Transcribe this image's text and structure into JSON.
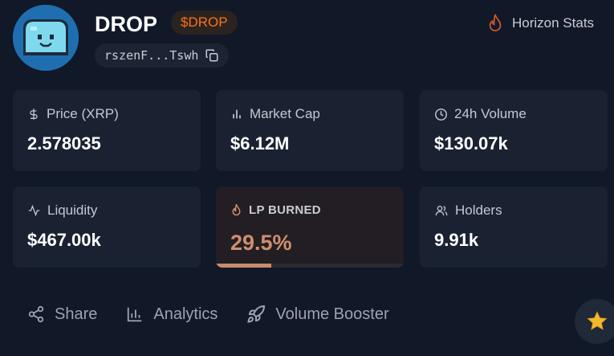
{
  "token": {
    "name": "DROP",
    "ticker": "$DROP",
    "address_short": "rszenF...Tswh"
  },
  "header_link": {
    "label": "Horizon Stats"
  },
  "stats": {
    "price": {
      "label": "Price (XRP)",
      "value": "2.578035"
    },
    "market_cap": {
      "label": "Market Cap",
      "value": "$6.12M"
    },
    "volume_24h": {
      "label": "24h Volume",
      "value": "$130.07k"
    },
    "liquidity": {
      "label": "Liquidity",
      "value": "$467.00k"
    },
    "lp_burned": {
      "label": "LP BURNED",
      "value": "29.5%",
      "fraction": 0.295
    },
    "holders": {
      "label": "Holders",
      "value": "9.91k"
    }
  },
  "actions": {
    "share": "Share",
    "analytics": "Analytics",
    "volume_booster": "Volume Booster"
  },
  "icons": {
    "avatar": "blob-mascot-icon",
    "copy": "copy-icon",
    "flame": "flame-icon",
    "dollar": "dollar-icon",
    "bar_chart": "bar-chart-icon",
    "clock": "clock-icon",
    "pulse": "pulse-icon",
    "users": "users-icon",
    "share": "share-icon",
    "rocket": "rocket-icon",
    "star": "star-icon"
  },
  "colors": {
    "background": "#111827",
    "card": "#1a2232",
    "accent_orange": "#f97316",
    "burn_value": "#d08d6e"
  }
}
